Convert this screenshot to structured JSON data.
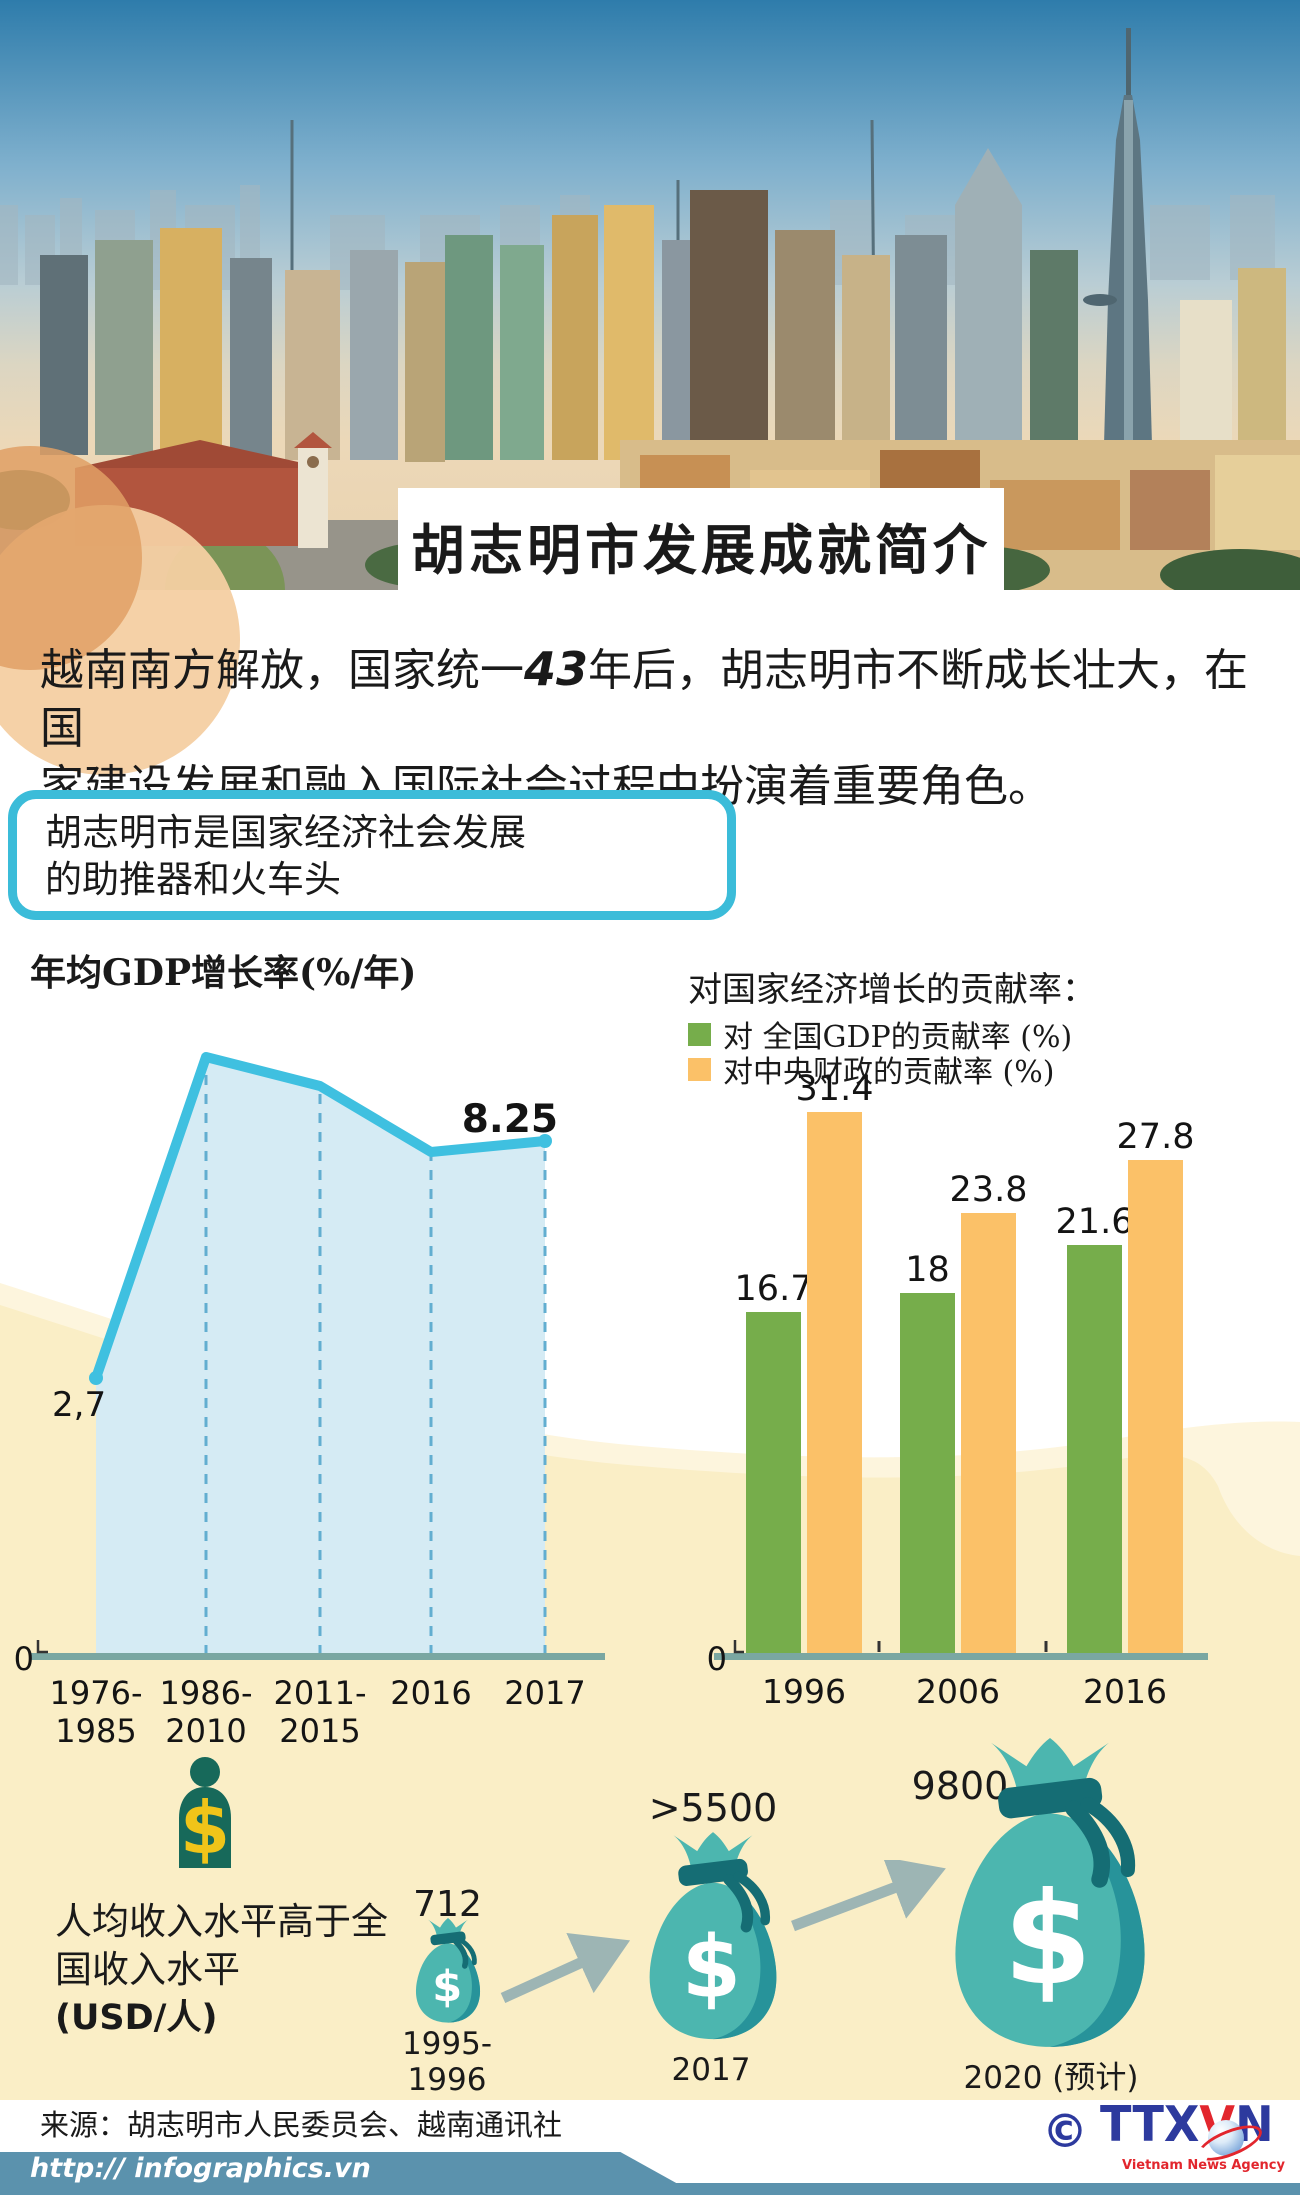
{
  "header": {
    "title": "胡志明市发展成就简介"
  },
  "intro": {
    "pre": "越南南方解放，国家统一",
    "highlight": "43",
    "post": "年后，胡志明市不断成长壮大，在国",
    "line2": "家建设发展和融入国际社会过程中扮演着重要角色。"
  },
  "highlight_box": {
    "line1": "胡志明市是国家经济社会发展",
    "line2": "的助推器和火车头"
  },
  "chart_data": [
    {
      "type": "area",
      "title": "年均GDP增长率(%/年)",
      "categories": [
        "1976-1985",
        "1986-2010",
        "2011-2015",
        "2016",
        "2017"
      ],
      "values": [
        2.7,
        10.3,
        9.6,
        8.0,
        8.25
      ],
      "value_labels": {
        "start": "2,7",
        "end": "8.25"
      },
      "labeled_points_note": "only first and last points carry data labels; middle values estimated from curve height",
      "y_axis_zero": "0",
      "ylim": [
        0,
        11
      ],
      "grid": "dashed vertical guides at each category",
      "line_color": "#3fc0e0",
      "fill_color": "#d5ebf4"
    },
    {
      "type": "bar",
      "title": "对国家经济增长的贡献率：",
      "categories": [
        "1996",
        "2006",
        "2016"
      ],
      "series": [
        {
          "name": "对 全国GDP的贡献率 (%)",
          "color": "#76ad4b",
          "values": [
            16.7,
            18,
            21.6
          ],
          "labels": [
            "16.7",
            "18",
            "21.6"
          ]
        },
        {
          "name": "对中央财政的贡献率 (%)",
          "color": "#fbc168",
          "values": [
            31.4,
            23.8,
            27.8
          ],
          "labels": [
            "31.4",
            "23.8",
            "27.8"
          ]
        }
      ],
      "y_axis_zero": "0",
      "ylim": [
        0,
        33
      ],
      "legend_position": "above chart, left-aligned"
    },
    {
      "type": "pictogram",
      "title": "人均收入水平高于全国收入水平 (USD/人)",
      "categories": [
        "1995-1996",
        "2017",
        "2020 (预计)"
      ],
      "values": [
        712,
        5500,
        9800
      ],
      "value_labels": [
        "712",
        ">5500",
        "9800"
      ]
    }
  ],
  "income": {
    "heading_line1": "人均收入水平高于全",
    "heading_line2": "国收入水平",
    "heading_line3": "(USD/人)",
    "points": [
      {
        "value": "712",
        "period": "1995-1996"
      },
      {
        "value": ">5500",
        "period": "2017"
      },
      {
        "value": "9800",
        "period": "2020 (预计)"
      }
    ]
  },
  "footer": {
    "source": "来源：胡志明市人民委员会、越南通讯社",
    "url": "http:// infographics.vn",
    "logo": {
      "copyright": "©",
      "text_parts": [
        "TTX",
        "V",
        "N"
      ],
      "subtext": "Vietnam News Agency"
    }
  },
  "colors": {
    "accent_cyan": "#3bbcd9",
    "line_blue": "#3fc0e0",
    "area_fill": "#d5ebf4",
    "dash_blue": "#62aed0",
    "bar_green": "#76ad4b",
    "bar_orange": "#fbc168",
    "axis_teal": "#7aa7a2",
    "bag_teal": "#4cb6af",
    "bag_dark": "#27939a",
    "knot_teal": "#156d74",
    "person_green": "#17695a",
    "dollar_yellow": "#f0c419",
    "cream": "#faeec6",
    "cream_light": "#fdf5dd",
    "footer_blue": "#5b92ad",
    "logo_blue": "#2d3a9e",
    "logo_red": "#e2262d",
    "circle_dark": "#e0a065",
    "circle_light": "#f4cfa2",
    "arrow_gray": "#9db5b4"
  }
}
